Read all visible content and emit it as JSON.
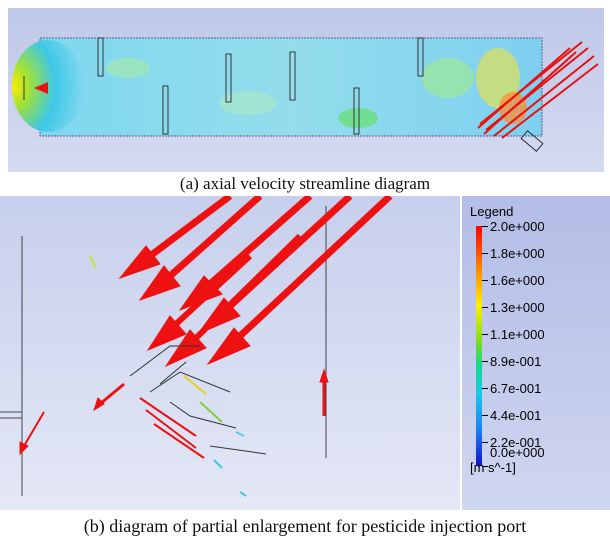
{
  "figure": {
    "caption_a": "(a) axial velocity streamline diagram",
    "caption_b": "(b) diagram of partial enlargement for  pesticide injection port"
  },
  "legend": {
    "title": "Legend",
    "labels": [
      "2.0e+000",
      "1.8e+000",
      "1.6e+000",
      "1.3e+000",
      "1.1e+000",
      "8.9e-001",
      "6.7e-001",
      "4.4e-001",
      "2.2e-001",
      "0.0e+000"
    ],
    "unit": "[m s^-1]",
    "colors": {
      "high": "#ff0000",
      "mid_high": "#ff8800",
      "mid": "#ffee00",
      "mid_low": "#12d98a",
      "low": "#19c8e6",
      "min": "#1212c8"
    }
  }
}
